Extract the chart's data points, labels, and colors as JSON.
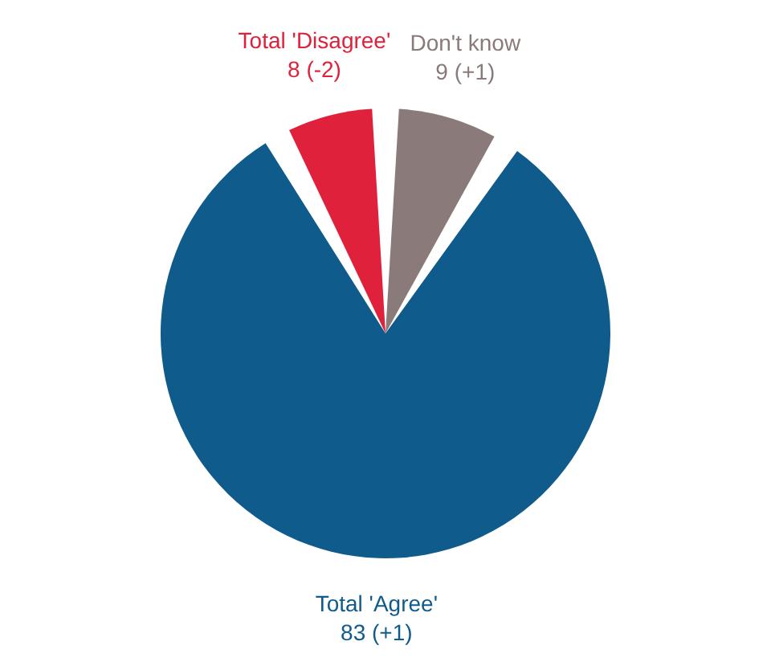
{
  "chart_data": {
    "type": "pie",
    "categories": [
      "Don't know",
      "Total 'Agree'",
      "Total 'Disagree'"
    ],
    "values": [
      9,
      83,
      8
    ],
    "colors": [
      "#8a7a7a",
      "#0f5b8c",
      "#e0213b"
    ],
    "value_labels": [
      "9 (+1)",
      "83 (+1)",
      "8 (-2)"
    ],
    "legend": false
  }
}
